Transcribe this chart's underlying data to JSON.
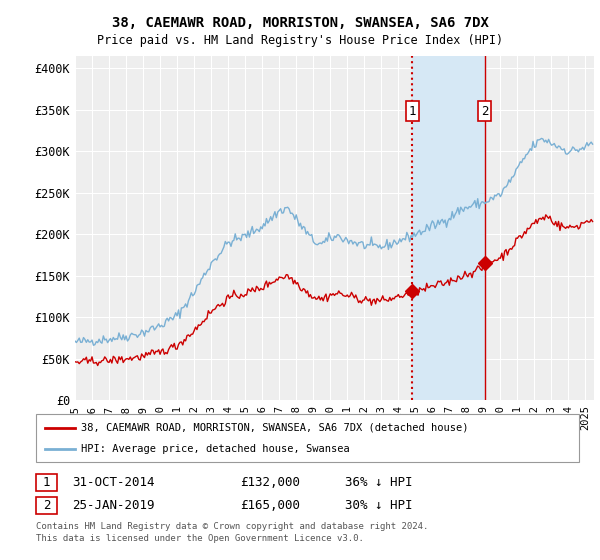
{
  "title": "38, CAEMAWR ROAD, MORRISTON, SWANSEA, SA6 7DX",
  "subtitle": "Price paid vs. HM Land Registry's House Price Index (HPI)",
  "ylabel_ticks": [
    "£0",
    "£50K",
    "£100K",
    "£150K",
    "£200K",
    "£250K",
    "£300K",
    "£350K",
    "£400K"
  ],
  "ytick_values": [
    0,
    50000,
    100000,
    150000,
    200000,
    250000,
    300000,
    350000,
    400000
  ],
  "ylim": [
    0,
    415000
  ],
  "xlim_start": 1995.0,
  "xlim_end": 2025.5,
  "background_color": "#ffffff",
  "plot_bg_color": "#eeeeee",
  "grid_color": "#ffffff",
  "hpi_color": "#7ab0d4",
  "hpi_fill_color": "#d6e8f5",
  "price_color": "#cc0000",
  "vline1_color": "#cc0000",
  "vline1_style": ":",
  "vline2_color": "#cc0000",
  "vline2_style": "-",
  "sale1_x": 2014.833,
  "sale1_y": 132000,
  "sale1_label": "1",
  "sale1_date": "31-OCT-2014",
  "sale1_price": "£132,000",
  "sale1_pct": "36% ↓ HPI",
  "sale2_x": 2019.07,
  "sale2_y": 165000,
  "sale2_label": "2",
  "sale2_date": "25-JAN-2019",
  "sale2_price": "£165,000",
  "sale2_pct": "30% ↓ HPI",
  "legend_label1": "38, CAEMAWR ROAD, MORRISTON, SWANSEA, SA6 7DX (detached house)",
  "legend_label2": "HPI: Average price, detached house, Swansea",
  "footer1": "Contains HM Land Registry data © Crown copyright and database right 2024.",
  "footer2": "This data is licensed under the Open Government Licence v3.0.",
  "highlight_start": 2014.833,
  "highlight_end": 2019.07
}
